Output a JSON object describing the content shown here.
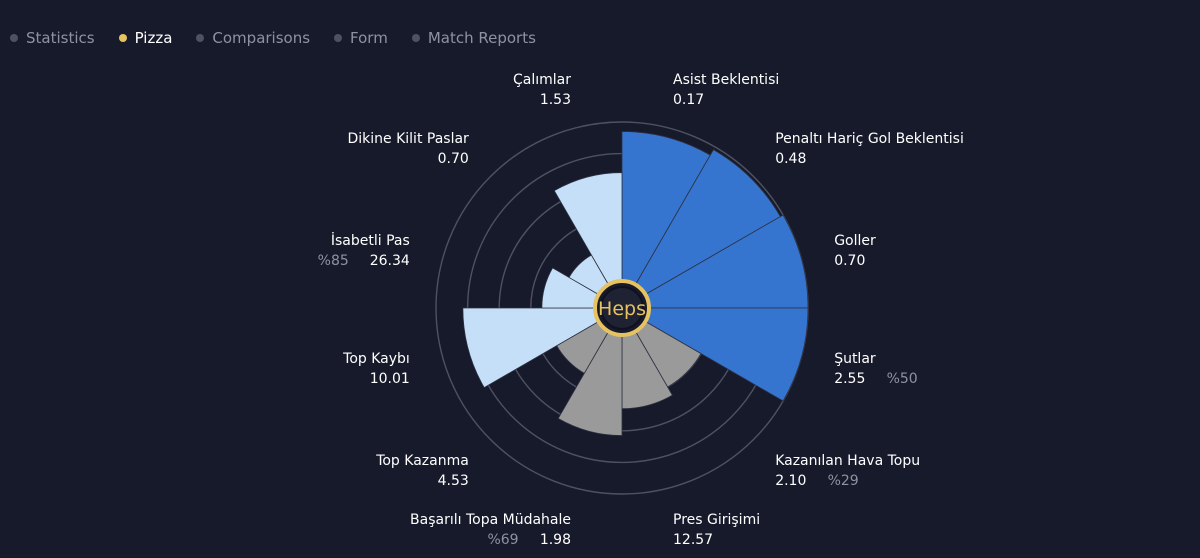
{
  "tabs": [
    {
      "label": "Statistics",
      "active": false
    },
    {
      "label": "Pizza",
      "active": true
    },
    {
      "label": "Comparisons",
      "active": false
    },
    {
      "label": "Form",
      "active": false
    },
    {
      "label": "Match Reports",
      "active": false
    }
  ],
  "center_label": "Heps",
  "colors": {
    "attack": "#3575d0",
    "defense": "#9a9a9a",
    "possession": "#c6dff8",
    "accent": "#e6c260",
    "ring": "#4e5260"
  },
  "chart_data": {
    "type": "pizza",
    "rings": 5,
    "segments": [
      {
        "name": "Asist Beklentisi",
        "value": "0.17",
        "pct": "",
        "percentile": 0.94,
        "group": "attack"
      },
      {
        "name": "Penaltı Hariç Gol Beklentisi",
        "value": "0.48",
        "pct": "",
        "percentile": 0.98,
        "group": "attack"
      },
      {
        "name": "Goller",
        "value": "0.70",
        "pct": "",
        "percentile": 1.0,
        "group": "attack"
      },
      {
        "name": "Şutlar",
        "value": "2.55",
        "pct": "%50",
        "percentile": 1.0,
        "group": "attack"
      },
      {
        "name": "Kazanılan Hava Topu",
        "value": "2.10",
        "pct": "%29",
        "percentile": 0.4,
        "group": "defense"
      },
      {
        "name": "Pres Girişimi",
        "value": "12.57",
        "pct": "",
        "percentile": 0.46,
        "group": "defense"
      },
      {
        "name": "Başarılı Topa Müdahale",
        "value": "1.98",
        "pct": "%69",
        "percentile": 0.63,
        "group": "defense"
      },
      {
        "name": "Top Kazanma",
        "value": "4.53",
        "pct": "",
        "percentile": 0.3,
        "group": "defense"
      },
      {
        "name": "Top Kaybı",
        "value": "10.01",
        "pct": "",
        "percentile": 0.83,
        "group": "possession"
      },
      {
        "name": "İsabetli Pas",
        "value": "26.34",
        "pct": "%85",
        "percentile": 0.33,
        "group": "possession"
      },
      {
        "name": "Dikine Kilit Paslar",
        "value": "0.70",
        "pct": "",
        "percentile": 0.21,
        "group": "possession"
      },
      {
        "name": "Çalımlar",
        "value": "1.53",
        "pct": "",
        "percentile": 0.68,
        "group": "possession"
      }
    ]
  }
}
